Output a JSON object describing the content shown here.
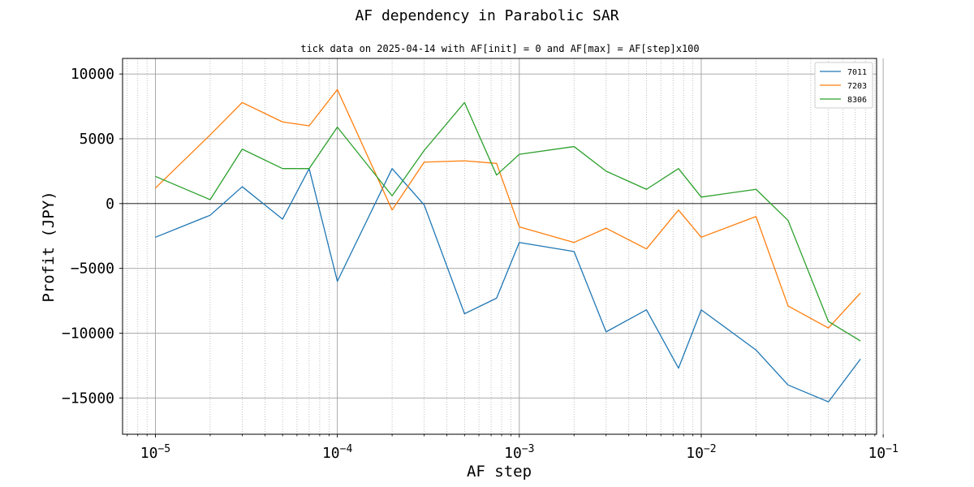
{
  "chart_data": {
    "type": "line",
    "title": "AF dependency in Parabolic SAR",
    "subtitle": "tick data on 2025-04-14 with AF[init] = 0 and AF[max] = AF[step]x100",
    "xlabel": "AF step",
    "ylabel": "Profit (JPY)",
    "xscale": "log",
    "xlim": [
      6.6e-06,
      0.092
    ],
    "ylim": [
      -17800,
      11200
    ],
    "grid": true,
    "legend_position": "top-right",
    "x": [
      1e-05,
      2e-05,
      3e-05,
      5e-05,
      7e-05,
      0.0001,
      0.0002,
      0.0003,
      0.0005,
      0.00075,
      0.001,
      0.002,
      0.003,
      0.005,
      0.0075,
      0.01,
      0.02,
      0.03,
      0.05,
      0.075
    ],
    "x_ticks": [
      {
        "value": 1e-05,
        "base": "10",
        "exp": "−5"
      },
      {
        "value": 0.0001,
        "base": "10",
        "exp": "−4"
      },
      {
        "value": 0.001,
        "base": "10",
        "exp": "−3"
      },
      {
        "value": 0.01,
        "base": "10",
        "exp": "−2"
      },
      {
        "value": 0.1,
        "base": "10",
        "exp": "−1"
      }
    ],
    "y_ticks": [
      {
        "value": 10000,
        "label": "10000"
      },
      {
        "value": 5000,
        "label": "5000"
      },
      {
        "value": 0,
        "label": "0"
      },
      {
        "value": -5000,
        "label": "−5000"
      },
      {
        "value": -10000,
        "label": "−10000"
      },
      {
        "value": -15000,
        "label": "−15000"
      }
    ],
    "series": [
      {
        "name": "7011",
        "color": "#1f77b4",
        "values": [
          -2600,
          -900,
          1300,
          -1200,
          2700,
          -6000,
          2700,
          -100,
          -8500,
          -7300,
          -3000,
          -3700,
          -9900,
          -8200,
          -12700,
          -8200,
          -11300,
          -14000,
          -15300,
          -12000
        ]
      },
      {
        "name": "7203",
        "color": "#ff7f0e",
        "values": [
          1200,
          5300,
          7800,
          6300,
          6000,
          8800,
          -500,
          3200,
          3300,
          3100,
          -1800,
          -3000,
          -1900,
          -3500,
          -500,
          -2600,
          -1000,
          -7900,
          -9600,
          -6900
        ]
      },
      {
        "name": "8306",
        "color": "#2ca02c",
        "values": [
          2100,
          300,
          4200,
          2700,
          2700,
          5900,
          600,
          4100,
          7800,
          2200,
          3800,
          4400,
          2500,
          1100,
          2700,
          500,
          1100,
          -1300,
          -9100,
          -10600
        ]
      }
    ]
  }
}
